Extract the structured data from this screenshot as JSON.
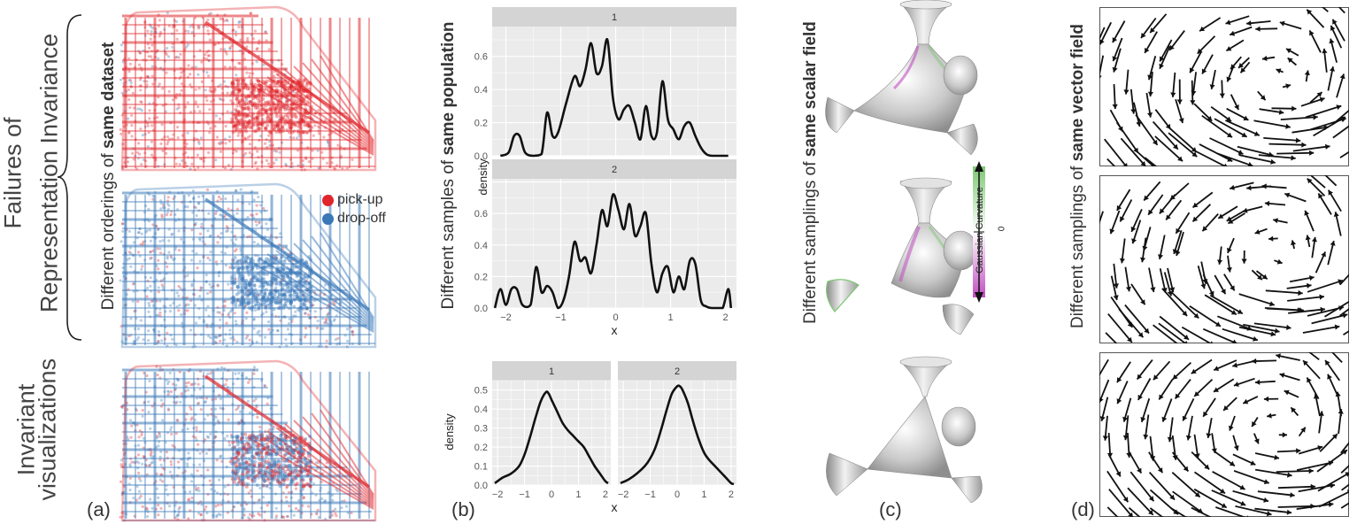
{
  "left_labels": {
    "failures_line1": "Failures of",
    "failures_line2": "Representation Invariance",
    "invariant_line1": "Invariant",
    "invariant_line2": "visualizations"
  },
  "panel_a": {
    "letter": "(a)",
    "side_label_prefix": "Different orderings of ",
    "side_label_bold": "same dataset",
    "legend": [
      {
        "label": "pick-up",
        "color": "#e0262b"
      },
      {
        "label": "drop-off",
        "color": "#3a78b8"
      }
    ]
  },
  "panel_b": {
    "letter": "(b)",
    "side_label_prefix": "Different samples of ",
    "side_label_bold": "same population"
  },
  "panel_c": {
    "letter": "(c)",
    "side_label_prefix": "Different samplings of ",
    "side_label_bold": "same scalar field",
    "colorbar_label": "Gaussian Curvature",
    "colorbar_zero": "0",
    "colors": {
      "positive": "#7dc873",
      "negative": "#c14fc1"
    }
  },
  "panel_d": {
    "letter": "(d)",
    "side_label_prefix": "Different samplings of ",
    "side_label_bold": "same vector field"
  },
  "chart_data": [
    {
      "type": "line",
      "facet": "1",
      "xlim": [
        -2.25,
        2.2
      ],
      "ylim": [
        0,
        0.78
      ],
      "yticks": [
        0.0,
        0.2,
        0.4,
        0.6
      ],
      "ytick_labels": [
        "0.0",
        "0.2",
        "0.4",
        "0.6"
      ],
      "ylabel": "density",
      "x": [
        -2.1,
        -1.95,
        -1.85,
        -1.75,
        -1.65,
        -1.5,
        -1.35,
        -1.25,
        -1.15,
        -1.05,
        -0.9,
        -0.75,
        -0.65,
        -0.55,
        -0.45,
        -0.35,
        -0.25,
        -0.15,
        -0.05,
        0.05,
        0.15,
        0.25,
        0.35,
        0.45,
        0.55,
        0.65,
        0.75,
        0.85,
        0.95,
        1.05,
        1.15,
        1.25,
        1.35,
        1.45,
        1.55,
        1.65,
        1.75,
        1.85,
        1.95,
        2.05
      ],
      "y": [
        0,
        0.02,
        0.12,
        0.12,
        0.02,
        0,
        0.01,
        0.26,
        0.12,
        0.14,
        0.32,
        0.48,
        0.42,
        0.52,
        0.68,
        0.5,
        0.54,
        0.7,
        0.35,
        0.22,
        0.28,
        0.3,
        0.2,
        0.1,
        0.3,
        0.12,
        0.14,
        0.45,
        0.22,
        0.16,
        0.1,
        0.18,
        0.2,
        0.12,
        0.05,
        0.01,
        0,
        0,
        0,
        0
      ]
    },
    {
      "type": "line",
      "facet": "2",
      "xlim": [
        -2.25,
        2.2
      ],
      "ylim": [
        0,
        0.82
      ],
      "yticks": [
        0.0,
        0.2,
        0.4,
        0.6
      ],
      "ytick_labels": [
        "0.0",
        "0.2",
        "0.4",
        "0.6"
      ],
      "xticks": [
        -2,
        -1,
        0,
        1,
        2
      ],
      "xtick_labels": [
        "−2",
        "−1",
        "0",
        "1",
        "2"
      ],
      "xlabel": "x",
      "ylabel": "density",
      "x": [
        -2.2,
        -2.1,
        -2.0,
        -1.9,
        -1.8,
        -1.7,
        -1.55,
        -1.45,
        -1.35,
        -1.25,
        -1.15,
        -1.05,
        -0.95,
        -0.85,
        -0.75,
        -0.65,
        -0.55,
        -0.45,
        -0.35,
        -0.25,
        -0.15,
        -0.05,
        0.05,
        0.15,
        0.25,
        0.35,
        0.45,
        0.55,
        0.65,
        0.75,
        0.85,
        0.95,
        1.05,
        1.15,
        1.25,
        1.35,
        1.45,
        1.55,
        1.65,
        1.75,
        1.85,
        1.95,
        2.05,
        2.1
      ],
      "y": [
        0,
        0.12,
        0.02,
        0.12,
        0.12,
        0.02,
        0.02,
        0.26,
        0.1,
        0.14,
        0.1,
        0.0,
        0.05,
        0.2,
        0.42,
        0.3,
        0.32,
        0.22,
        0.4,
        0.62,
        0.52,
        0.72,
        0.62,
        0.5,
        0.66,
        0.46,
        0.52,
        0.6,
        0.28,
        0.1,
        0.22,
        0.26,
        0.1,
        0.2,
        0.12,
        0.3,
        0.28,
        0.05,
        0.01,
        0,
        0,
        0,
        0.12,
        0
      ]
    },
    {
      "type": "line",
      "facet": "1",
      "xlim": [
        -2.2,
        2.2
      ],
      "ylim": [
        0,
        0.55
      ],
      "yticks": [
        0.0,
        0.1,
        0.2,
        0.3,
        0.4,
        0.5
      ],
      "ytick_labels": [
        "0.0",
        "0.1",
        "0.2",
        "0.3",
        "0.4",
        "0.5"
      ],
      "xticks": [
        -2,
        -1,
        0,
        1,
        2
      ],
      "xtick_labels": [
        "−2",
        "−1",
        "0",
        "1",
        "2"
      ],
      "ylabel": "density",
      "x": [
        -2.1,
        -1.8,
        -1.5,
        -1.2,
        -1.0,
        -0.8,
        -0.6,
        -0.4,
        -0.2,
        -0.1,
        0.0,
        0.2,
        0.4,
        0.6,
        0.8,
        1.0,
        1.2,
        1.4,
        1.6,
        1.8,
        2.0,
        2.1
      ],
      "y": [
        0.01,
        0.04,
        0.06,
        0.1,
        0.16,
        0.25,
        0.35,
        0.44,
        0.49,
        0.48,
        0.45,
        0.39,
        0.33,
        0.29,
        0.26,
        0.23,
        0.2,
        0.15,
        0.1,
        0.06,
        0.02,
        0.01
      ]
    },
    {
      "type": "line",
      "facet": "2",
      "xlim": [
        -2.2,
        2.2
      ],
      "ylim": [
        0,
        0.55
      ],
      "xticks": [
        -2,
        -1,
        0,
        1,
        2
      ],
      "xtick_labels": [
        "−2",
        "−1",
        "0",
        "1",
        "2"
      ],
      "xlabel": "x",
      "x": [
        -2.1,
        -1.8,
        -1.5,
        -1.2,
        -1.0,
        -0.8,
        -0.6,
        -0.4,
        -0.2,
        0.0,
        0.1,
        0.2,
        0.4,
        0.6,
        0.8,
        1.0,
        1.2,
        1.4,
        1.6,
        1.8,
        2.0,
        2.1
      ],
      "y": [
        0.01,
        0.03,
        0.06,
        0.1,
        0.14,
        0.2,
        0.29,
        0.39,
        0.48,
        0.52,
        0.52,
        0.5,
        0.43,
        0.33,
        0.24,
        0.17,
        0.13,
        0.1,
        0.07,
        0.04,
        0.01,
        0.005
      ]
    }
  ]
}
